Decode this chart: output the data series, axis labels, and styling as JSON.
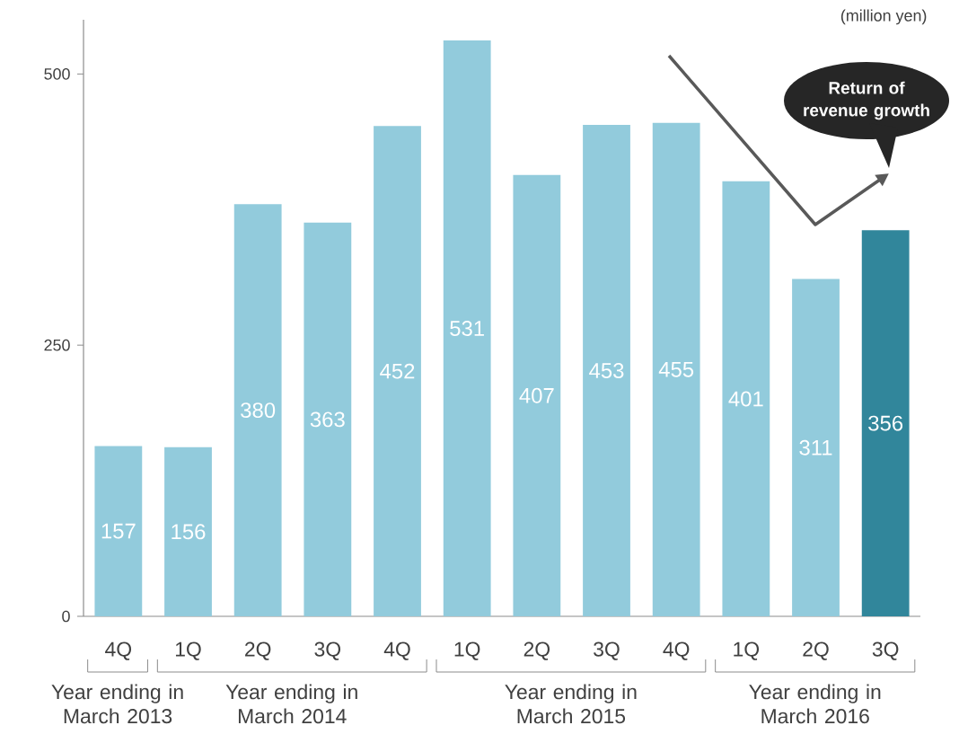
{
  "chart_data": {
    "type": "bar",
    "ylabel": "(million yen)",
    "categories": [
      "4Q",
      "1Q",
      "2Q",
      "3Q",
      "4Q",
      "1Q",
      "2Q",
      "3Q",
      "4Q",
      "1Q",
      "2Q",
      "3Q"
    ],
    "values": [
      157,
      156,
      380,
      363,
      452,
      531,
      407,
      453,
      455,
      401,
      311,
      356
    ],
    "colors": [
      "#92cbdc",
      "#92cbdc",
      "#92cbdc",
      "#92cbdc",
      "#92cbdc",
      "#92cbdc",
      "#92cbdc",
      "#92cbdc",
      "#92cbdc",
      "#92cbdc",
      "#92cbdc",
      "#31869b"
    ],
    "ylim": [
      0,
      550
    ],
    "yticks": [
      0,
      250,
      500
    ],
    "grid": false,
    "data_labels": true,
    "annotations": [
      "Year ending in March 2013",
      "Year ending in March 2014",
      "Year ending in March 2015",
      "Year ending in March 2016",
      "Return of revenue growth"
    ]
  }
}
